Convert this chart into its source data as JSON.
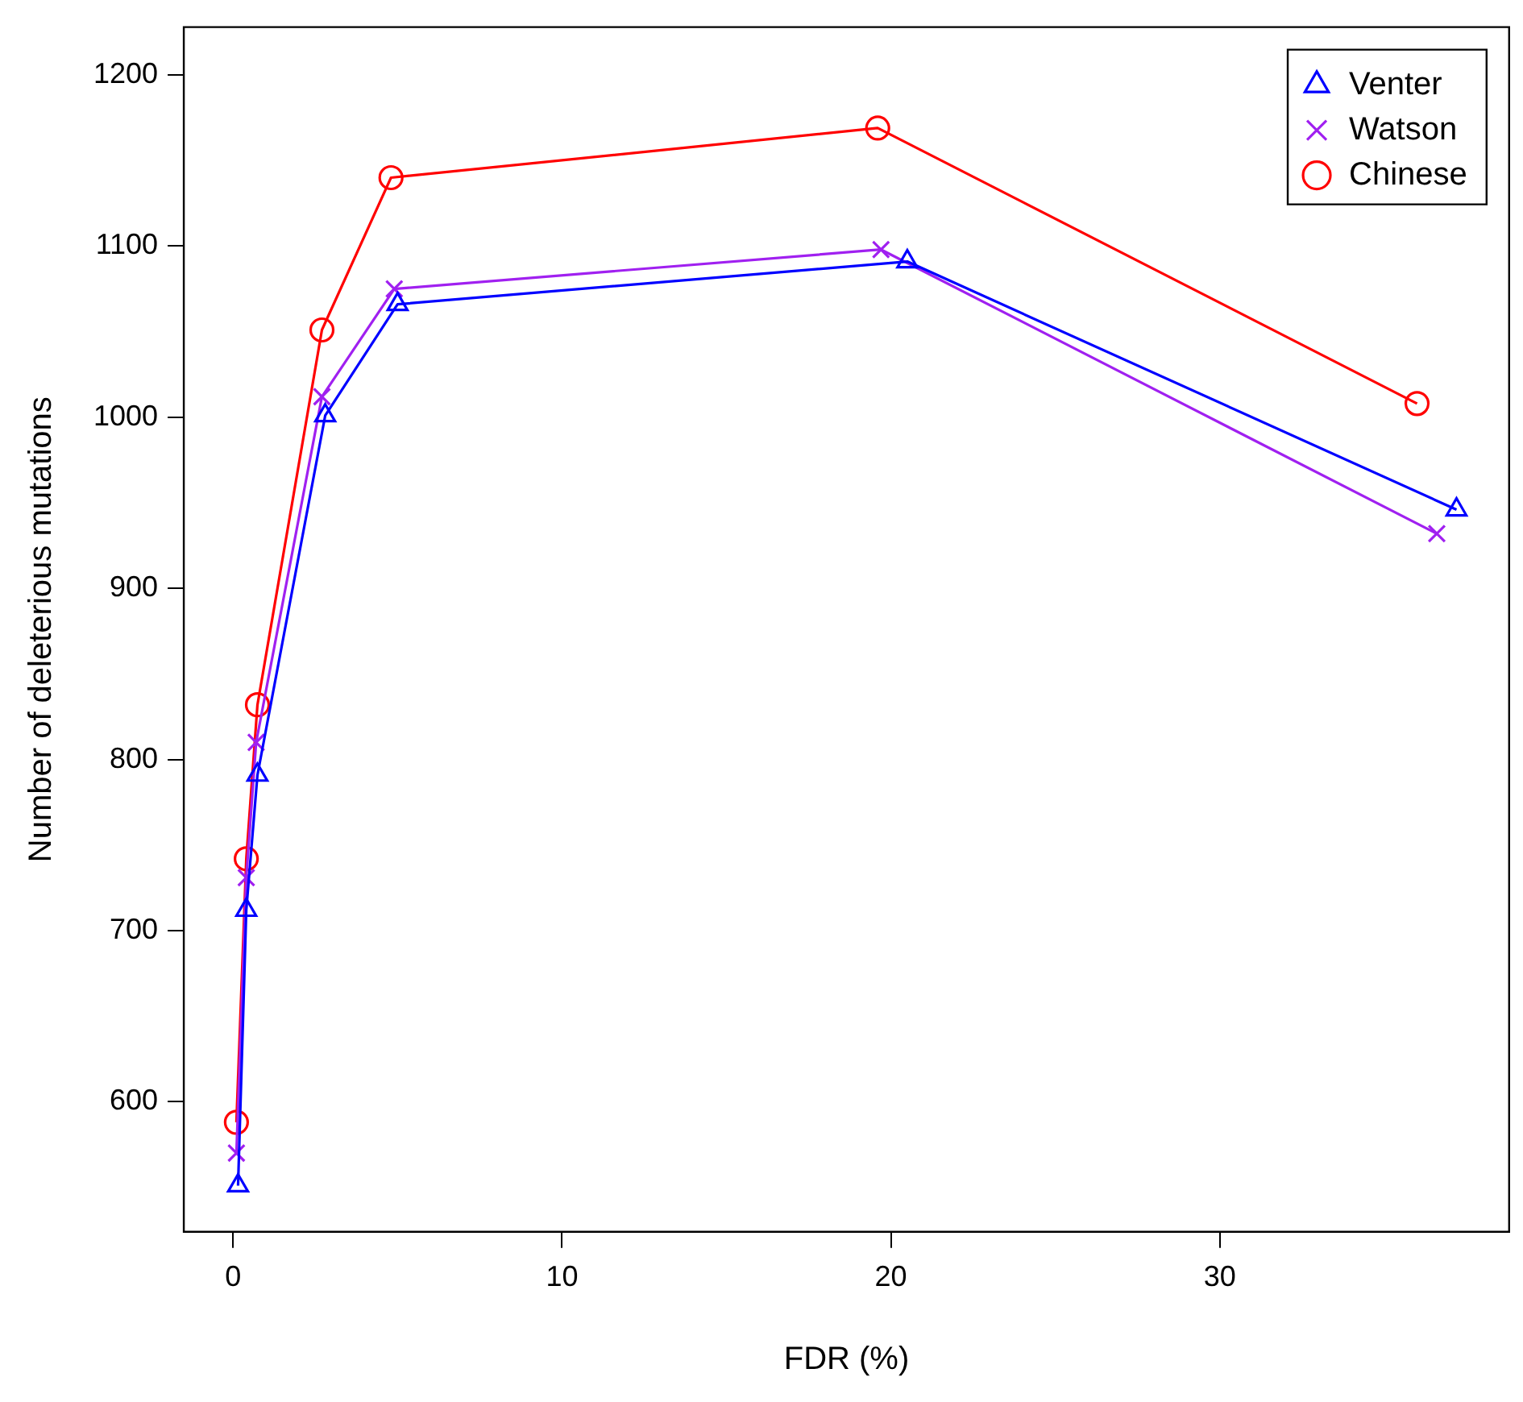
{
  "chart_data": {
    "type": "line",
    "xlabel": "FDR (%)",
    "ylabel": "Number of deleterious mutations",
    "xlim": [
      -1.5,
      38.8
    ],
    "xticks": [
      0,
      10,
      20,
      30
    ],
    "ylim": [
      524,
      1228
    ],
    "yticks": [
      600,
      700,
      800,
      900,
      1000,
      1100,
      1200
    ],
    "grid": false,
    "legend": "top right",
    "line_style": "solid",
    "series": [
      {
        "name": "Venter",
        "color": "#0000ff",
        "marker": "triangle",
        "x": [
          0.15,
          0.4,
          0.74,
          2.8,
          5.0,
          20.5,
          37.2
        ],
        "values": [
          551,
          712,
          791,
          1001,
          1066,
          1091,
          946
        ]
      },
      {
        "name": "Watson",
        "color": "#a020f0",
        "marker": "cross",
        "x": [
          0.1,
          0.4,
          0.7,
          2.7,
          4.9,
          19.7,
          36.6
        ],
        "values": [
          570,
          731,
          810,
          1012,
          1075,
          1098,
          932
        ]
      },
      {
        "name": "Chinese",
        "color": "#ff0000",
        "marker": "circle",
        "x": [
          0.1,
          0.4,
          0.74,
          2.7,
          4.8,
          19.6,
          36.0
        ],
        "values": [
          588,
          742,
          832,
          1051,
          1140,
          1169,
          1008
        ]
      }
    ]
  }
}
